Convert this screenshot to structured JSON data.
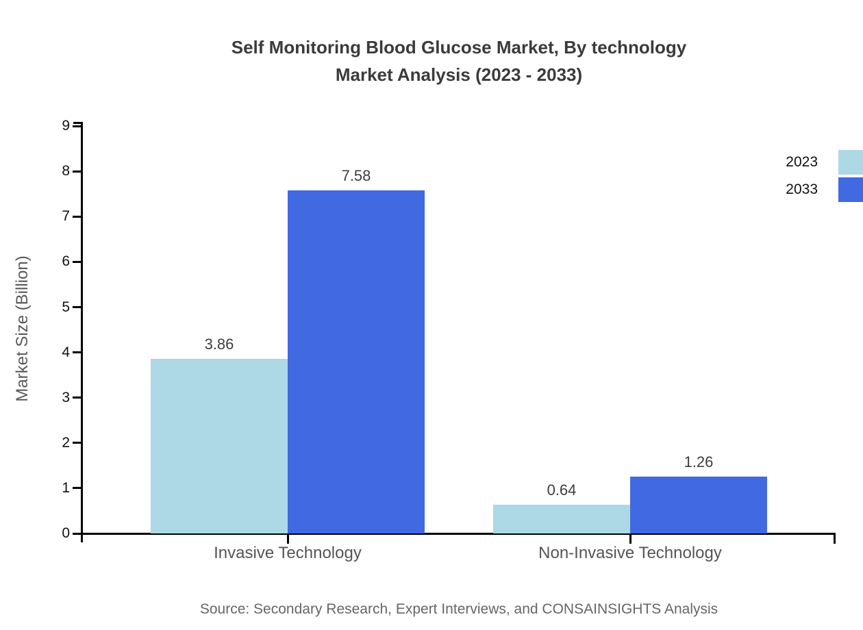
{
  "title": {
    "line1": "Self Monitoring Blood Glucose Market, By technology",
    "line2": "Market Analysis (2023 - 2033)"
  },
  "source": "Source: Secondary Research, Expert Interviews, and CONSAINSIGHTS Analysis",
  "colors": {
    "series_2023": "#add8e6",
    "series_2033": "#4169e1",
    "axis": "#000000",
    "title_text": "#3b3b3b",
    "tick_text": "#111111",
    "category_text": "#555555",
    "value_text": "#3d3d3d",
    "muted_text": "#666666"
  },
  "chart_data": {
    "type": "bar",
    "title": "Self Monitoring Blood Glucose Market, By technology Market Analysis (2023 - 2033)",
    "categories": [
      "Invasive Technology",
      "Non-Invasive Technology"
    ],
    "series": [
      {
        "name": "2023",
        "color": "#add8e6",
        "values": [
          3.86,
          0.64
        ]
      },
      {
        "name": "2033",
        "color": "#4169e1",
        "values": [
          7.58,
          1.26
        ]
      }
    ],
    "xlabel": "",
    "ylabel": "Market Size (Billion)",
    "ylim": [
      0,
      9
    ],
    "yticks": [
      0,
      1,
      2,
      3,
      4,
      5,
      6,
      7,
      8,
      9
    ],
    "grid": false,
    "value_labels": true,
    "value_label_format": "2-decimals",
    "legend_position": "top-right",
    "source_note": "Source: Secondary Research, Expert Interviews, and CONSAINSIGHTS Analysis"
  }
}
